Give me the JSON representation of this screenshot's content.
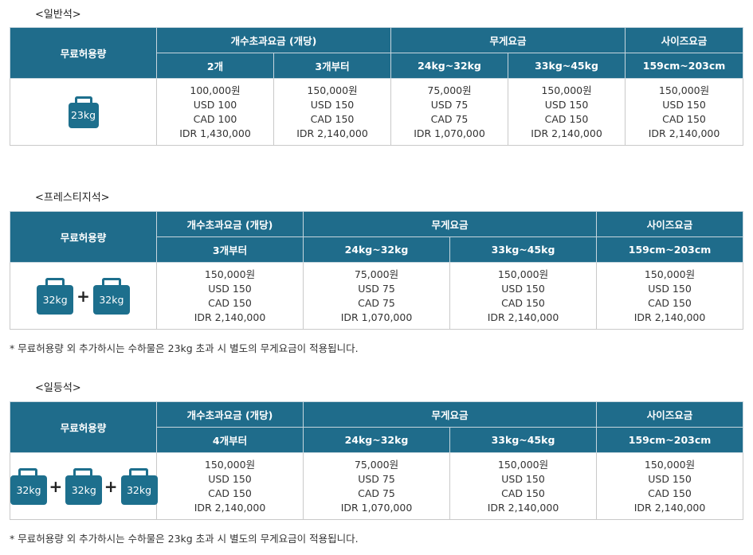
{
  "sections": [
    {
      "label": "<일반석>",
      "header": {
        "allowance": "무료허용량",
        "count_group": "개수초과요금 (개당)",
        "weight_group": "무게요금",
        "size_group": "사이즈요금",
        "count_sub": [
          "2개",
          "3개부터"
        ],
        "weight_sub": [
          "24kg~32kg",
          "33kg~45kg"
        ],
        "size_sub": [
          "159cm~203cm"
        ]
      },
      "bags": [
        "23kg"
      ],
      "fees": [
        [
          "100,000원",
          "USD 100",
          "CAD 100",
          "IDR 1,430,000"
        ],
        [
          "150,000원",
          "USD 150",
          "CAD 150",
          "IDR 2,140,000"
        ],
        [
          "75,000원",
          "USD 75",
          "CAD 75",
          "IDR 1,070,000"
        ],
        [
          "150,000원",
          "USD 150",
          "CAD 150",
          "IDR 2,140,000"
        ],
        [
          "150,000원",
          "USD 150",
          "CAD 150",
          "IDR 2,140,000"
        ]
      ]
    },
    {
      "label": "<프레스티지석>",
      "header": {
        "allowance": "무료허용량",
        "count_group": "개수초과요금 (개당)",
        "weight_group": "무게요금",
        "size_group": "사이즈요금",
        "count_sub": [
          "3개부터"
        ],
        "weight_sub": [
          "24kg~32kg",
          "33kg~45kg"
        ],
        "size_sub": [
          "159cm~203cm"
        ]
      },
      "bags": [
        "32kg",
        "32kg"
      ],
      "fees": [
        [
          "150,000원",
          "USD 150",
          "CAD 150",
          "IDR 2,140,000"
        ],
        [
          "75,000원",
          "USD 75",
          "CAD 75",
          "IDR 1,070,000"
        ],
        [
          "150,000원",
          "USD 150",
          "CAD 150",
          "IDR 2,140,000"
        ],
        [
          "150,000원",
          "USD 150",
          "CAD 150",
          "IDR 2,140,000"
        ]
      ],
      "note": "* 무료허용량 외 추가하시는 수하물은 23kg 초과 시 별도의 무게요금이 적용됩니다."
    },
    {
      "label": "<일등석>",
      "header": {
        "allowance": "무료허용량",
        "count_group": "개수초과요금 (개당)",
        "weight_group": "무게요금",
        "size_group": "사이즈요금",
        "count_sub": [
          "4개부터"
        ],
        "weight_sub": [
          "24kg~32kg",
          "33kg~45kg"
        ],
        "size_sub": [
          "159cm~203cm"
        ]
      },
      "bags": [
        "32kg",
        "32kg",
        "32kg"
      ],
      "fees": [
        [
          "150,000원",
          "USD 150",
          "CAD 150",
          "IDR 2,140,000"
        ],
        [
          "75,000원",
          "USD 75",
          "CAD 75",
          "IDR 1,070,000"
        ],
        [
          "150,000원",
          "USD 150",
          "CAD 150",
          "IDR 2,140,000"
        ],
        [
          "150,000원",
          "USD 150",
          "CAD 150",
          "IDR 2,140,000"
        ]
      ],
      "note": "* 무료허용량 외 추가하시는 수하물은 23kg 초과 시 별도의 무게요금이 적용됩니다."
    }
  ],
  "colors": {
    "header_bg": "#1f6c8b",
    "bag": "#1d6f8d"
  },
  "plus_sign": "+"
}
